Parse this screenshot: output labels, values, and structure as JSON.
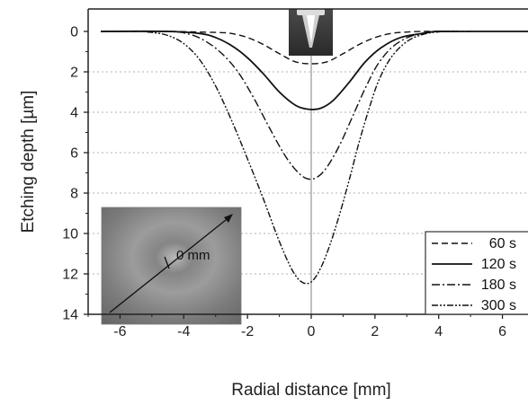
{
  "chart_data": {
    "type": "line",
    "xlabel": "Radial distance [mm]",
    "ylabel": "Etching depth [µm]",
    "xlim": [
      -7,
      7
    ],
    "ylim": [
      0,
      14
    ],
    "y_inverted": true,
    "x_ticks": [
      -6,
      -4,
      -2,
      0,
      2,
      4,
      6
    ],
    "x_tick_labels": [
      "-6",
      "-4",
      "-2",
      "0",
      "2",
      "4",
      "6"
    ],
    "y_ticks": [
      0,
      2,
      4,
      6,
      8,
      10,
      12,
      14
    ],
    "y_tick_labels": [
      "0",
      "2",
      "4",
      "6",
      "8",
      "10",
      "12",
      "14"
    ],
    "grid": "horizontal dotted",
    "center_line_x": 0,
    "legend_position": "bottom-right",
    "series": [
      {
        "name": "60 s",
        "style": "dashed",
        "x": [
          -6.6,
          -4.5,
          -3,
          -2.5,
          -2,
          -1.5,
          -1,
          -0.5,
          0,
          0.5,
          1,
          1.5,
          2,
          2.5,
          3,
          3.5,
          4.5
        ],
        "y": [
          0,
          0,
          0.05,
          0.1,
          0.3,
          0.65,
          1.1,
          1.5,
          1.6,
          1.5,
          1.1,
          0.65,
          0.3,
          0.1,
          0.03,
          0,
          0
        ]
      },
      {
        "name": "120 s",
        "style": "solid",
        "x": [
          -6.6,
          -4.5,
          -3.5,
          -3,
          -2.5,
          -2,
          -1.5,
          -1,
          -0.5,
          -0.1,
          0.3,
          0.7,
          1.2,
          1.7,
          2.2,
          2.8,
          3.5,
          3.9,
          4.5,
          7
        ],
        "y": [
          0,
          0,
          0.1,
          0.3,
          0.7,
          1.3,
          2.1,
          3.0,
          3.65,
          3.85,
          3.8,
          3.4,
          2.5,
          1.5,
          0.8,
          0.3,
          0.1,
          0,
          0,
          0
        ]
      },
      {
        "name": "180 s",
        "style": "dash-dot",
        "x": [
          -6.6,
          -4.5,
          -3.8,
          -3.3,
          -2.8,
          -2.3,
          -1.8,
          -1.3,
          -0.8,
          -0.4,
          -0.1,
          0.2,
          0.5,
          0.9,
          1.3,
          1.7,
          2.1,
          2.6,
          3.2,
          3.9,
          5
        ],
        "y": [
          0,
          0,
          0.15,
          0.5,
          1.1,
          2.0,
          3.3,
          4.8,
          6.2,
          7.0,
          7.3,
          7.2,
          6.7,
          5.6,
          4.2,
          2.8,
          1.6,
          0.7,
          0.2,
          0.02,
          0
        ]
      },
      {
        "name": "300 s",
        "style": "dash-dot-dot",
        "x": [
          -6.6,
          -5.5,
          -5,
          -4.5,
          -4,
          -3.5,
          -3,
          -2.5,
          -2,
          -1.5,
          -1,
          -0.6,
          -0.3,
          0,
          0.3,
          0.6,
          0.9,
          1.2,
          1.5,
          1.8,
          2.1,
          2.5,
          3,
          3.5,
          4,
          4.5
        ],
        "y": [
          0,
          0,
          0.05,
          0.2,
          0.6,
          1.4,
          2.7,
          4.4,
          6.3,
          8.3,
          10.4,
          11.8,
          12.4,
          12.4,
          11.7,
          10.5,
          9.0,
          7.3,
          5.5,
          3.9,
          2.5,
          1.3,
          0.5,
          0.15,
          0.02,
          0
        ]
      }
    ],
    "inset_photo_label": "0 mm"
  }
}
